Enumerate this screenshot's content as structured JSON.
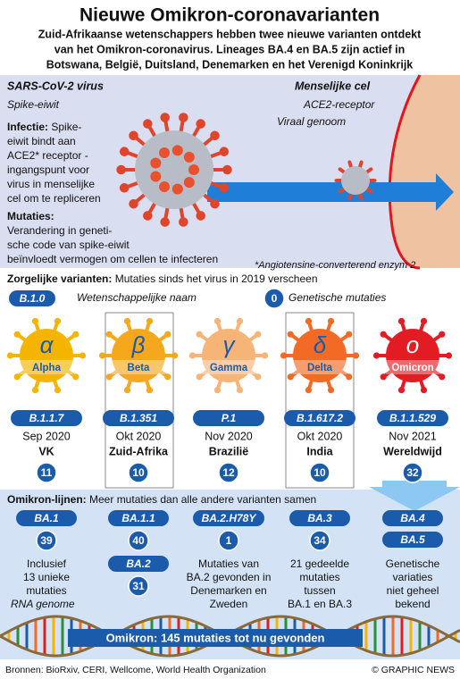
{
  "header": {
    "title": "Nieuwe Omikron-coronavarianten",
    "subtitle": [
      "Zuid-Afrikaanse wetenschappers hebben twee nieuwe varianten ontdekt",
      "van het Omikron-coronavirus. Lineages BA.4 en BA.5 zijn actief in",
      "Botswana, België, Duitsland, Denemarken en het Verenigd Koninkrijk"
    ]
  },
  "infection_diagram": {
    "virus_label": "SARS-CoV-2 virus",
    "spike_label": "Spike-eiwit",
    "cell_label": "Menselijke cel",
    "receptor_label": "ACE2-receptor",
    "genome_label": "Viraal genoom",
    "infection": {
      "heading": "Infectie:",
      "lines": [
        "Spike-",
        "eiwit bindt aan",
        "ACE2* receptor -",
        "ingangspunt voor",
        "virus in menselijke",
        "cel om te repliceren"
      ]
    },
    "mutations": {
      "heading": "Mutaties:",
      "lines": [
        "Verandering in geneti-",
        "sche code van spike-eiwit",
        "beïnvloedt vermogen om cellen te infecteren"
      ]
    },
    "footnote": "*Angiotensine-converterend enzym 2"
  },
  "variants_of_concern": {
    "heading": "Zorgelijke varianten:",
    "text": "Mutaties sinds het virus in 2019 verscheen",
    "key": {
      "lineage": "B.1.0",
      "lineage_label": "Wetenschappelijke naam",
      "mutations": 0,
      "mutations_label": "Genetische mutaties"
    },
    "variants": [
      {
        "symbol": "α",
        "name": "Alpha",
        "lineage": "B.1.1.7",
        "date": "Sep 2020",
        "country": "VK",
        "mutations": 11,
        "color": "#f4b400"
      },
      {
        "symbol": "β",
        "name": "Beta",
        "lineage": "B.1.351",
        "date": "Okt 2020",
        "country": "Zuid-Afrika",
        "mutations": 10,
        "color": "#f6a81c"
      },
      {
        "symbol": "γ",
        "name": "Gamma",
        "lineage": "P.1",
        "date": "Nov 2020",
        "country": "Brazilië",
        "mutations": 12,
        "color": "#f7b477"
      },
      {
        "symbol": "δ",
        "name": "Delta",
        "lineage": "B.1.617.2",
        "date": "Okt 2020",
        "country": "India",
        "mutations": 10,
        "color": "#f26a24"
      },
      {
        "symbol": "ο",
        "name": "Omicron",
        "lineage": "B.1.1.529",
        "date": "Nov 2021",
        "country": "Wereldwijd",
        "mutations": 32,
        "color": "#e31b23"
      }
    ]
  },
  "omicron_lineages": {
    "heading": "Omikron-lijnen:",
    "text": "Meer mutaties dan alle andere varianten samen",
    "columns": [
      {
        "entries": [
          {
            "name": "BA.1",
            "mutations": 39
          }
        ],
        "description": [
          "Inclusief",
          "13 unieke",
          "mutaties"
        ]
      },
      {
        "entries": [
          {
            "name": "BA.1.1",
            "mutations": 40
          },
          {
            "name": "BA.2",
            "mutations": 31
          }
        ]
      },
      {
        "entries": [
          {
            "name": "BA.2.H78Y",
            "mutations": 1
          }
        ],
        "description": [
          "Mutaties van",
          "BA.2 gevonden in",
          "Denemarken en",
          "Zweden"
        ]
      },
      {
        "entries": [
          {
            "name": "BA.3",
            "mutations": 34
          }
        ],
        "description": [
          "21 gedeelde",
          "mutaties",
          "tussen",
          "BA.1 en BA.3"
        ]
      },
      {
        "entries": [
          {
            "name": "BA.4"
          },
          {
            "name": "BA.5"
          }
        ],
        "description": [
          "Genetische",
          "variaties",
          "niet geheel",
          "bekend"
        ]
      }
    ],
    "rna_label": "RNA genome",
    "banner": "Omikron: 145 mutaties tot nu gevonden"
  },
  "footer": {
    "sources": "Bronnen: BioRxiv, CERI, Wellcome, World Health Organization",
    "credit": "© GRAPHIC NEWS"
  }
}
